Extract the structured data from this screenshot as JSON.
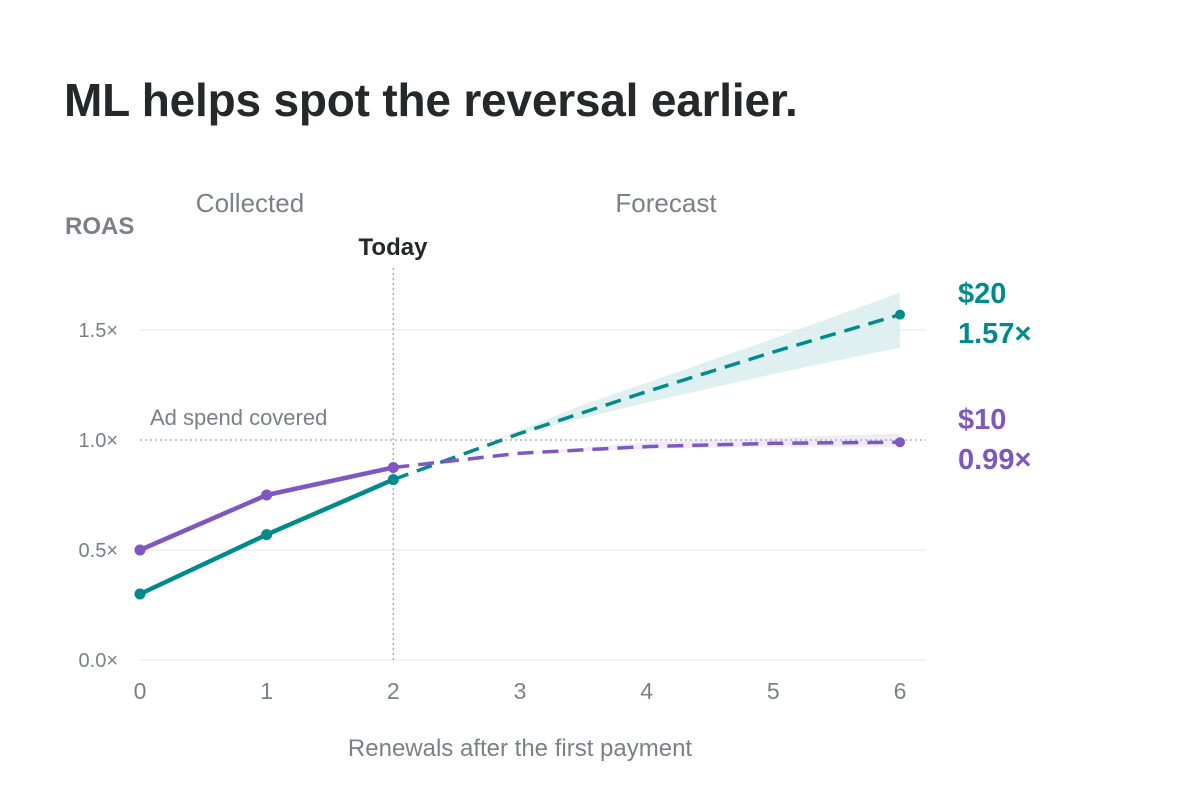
{
  "title": "ML helps spot the reversal earlier.",
  "colors": {
    "teal": "#008b8b",
    "purple": "#7e57c2",
    "text_dark": "#26272b",
    "text_muted": "#7c7f87",
    "grid": "#e6e6e8"
  },
  "chart_data": {
    "type": "line",
    "ylabel": "ROAS",
    "xlabel": "Renewals after the first payment",
    "x_ticks": [
      0,
      1,
      2,
      3,
      4,
      5,
      6
    ],
    "y_ticks": [
      0.0,
      0.5,
      1.0,
      1.5
    ],
    "y_tick_labels": [
      "0.0×",
      "0.5×",
      "1.0×",
      "1.5×"
    ],
    "xlim": [
      0,
      6
    ],
    "ylim": [
      0,
      1.5
    ],
    "region_labels": {
      "collected": "Collected",
      "forecast": "Forecast"
    },
    "today": {
      "x": 2,
      "label": "Today"
    },
    "reference_line": {
      "y": 1.0,
      "label": "Ad spend covered"
    },
    "series": [
      {
        "name": "$20",
        "color": "#008b8b",
        "end_label": "$20",
        "end_value_label": "1.57×",
        "collected": [
          {
            "x": 0,
            "y": 0.3
          },
          {
            "x": 1,
            "y": 0.57
          },
          {
            "x": 2,
            "y": 0.82
          }
        ],
        "forecast": [
          {
            "x": 2,
            "y": 0.82
          },
          {
            "x": 3,
            "y": 1.03
          },
          {
            "x": 4,
            "y": 1.22
          },
          {
            "x": 5,
            "y": 1.4
          },
          {
            "x": 6,
            "y": 1.57
          }
        ],
        "band": [
          {
            "x": 2.8,
            "lo": 1.0,
            "hi": 1.0
          },
          {
            "x": 3.5,
            "lo": 1.1,
            "hi": 1.16
          },
          {
            "x": 4.0,
            "lo": 1.17,
            "hi": 1.26
          },
          {
            "x": 5.0,
            "lo": 1.3,
            "hi": 1.46
          },
          {
            "x": 6.0,
            "lo": 1.42,
            "hi": 1.67
          }
        ]
      },
      {
        "name": "$10",
        "color": "#7e57c2",
        "end_label": "$10",
        "end_value_label": "0.99×",
        "collected": [
          {
            "x": 0,
            "y": 0.5
          },
          {
            "x": 1,
            "y": 0.75
          },
          {
            "x": 2,
            "y": 0.875
          }
        ],
        "forecast": [
          {
            "x": 2,
            "y": 0.875
          },
          {
            "x": 3,
            "y": 0.94
          },
          {
            "x": 4,
            "y": 0.97
          },
          {
            "x": 5,
            "y": 0.985
          },
          {
            "x": 6,
            "y": 0.99
          }
        ],
        "band": [
          {
            "x": 3.0,
            "lo": 0.94,
            "hi": 0.94
          },
          {
            "x": 4.0,
            "lo": 0.96,
            "hi": 0.99
          },
          {
            "x": 5.0,
            "lo": 0.97,
            "hi": 1.01
          },
          {
            "x": 6.0,
            "lo": 0.97,
            "hi": 1.03
          }
        ]
      }
    ]
  }
}
